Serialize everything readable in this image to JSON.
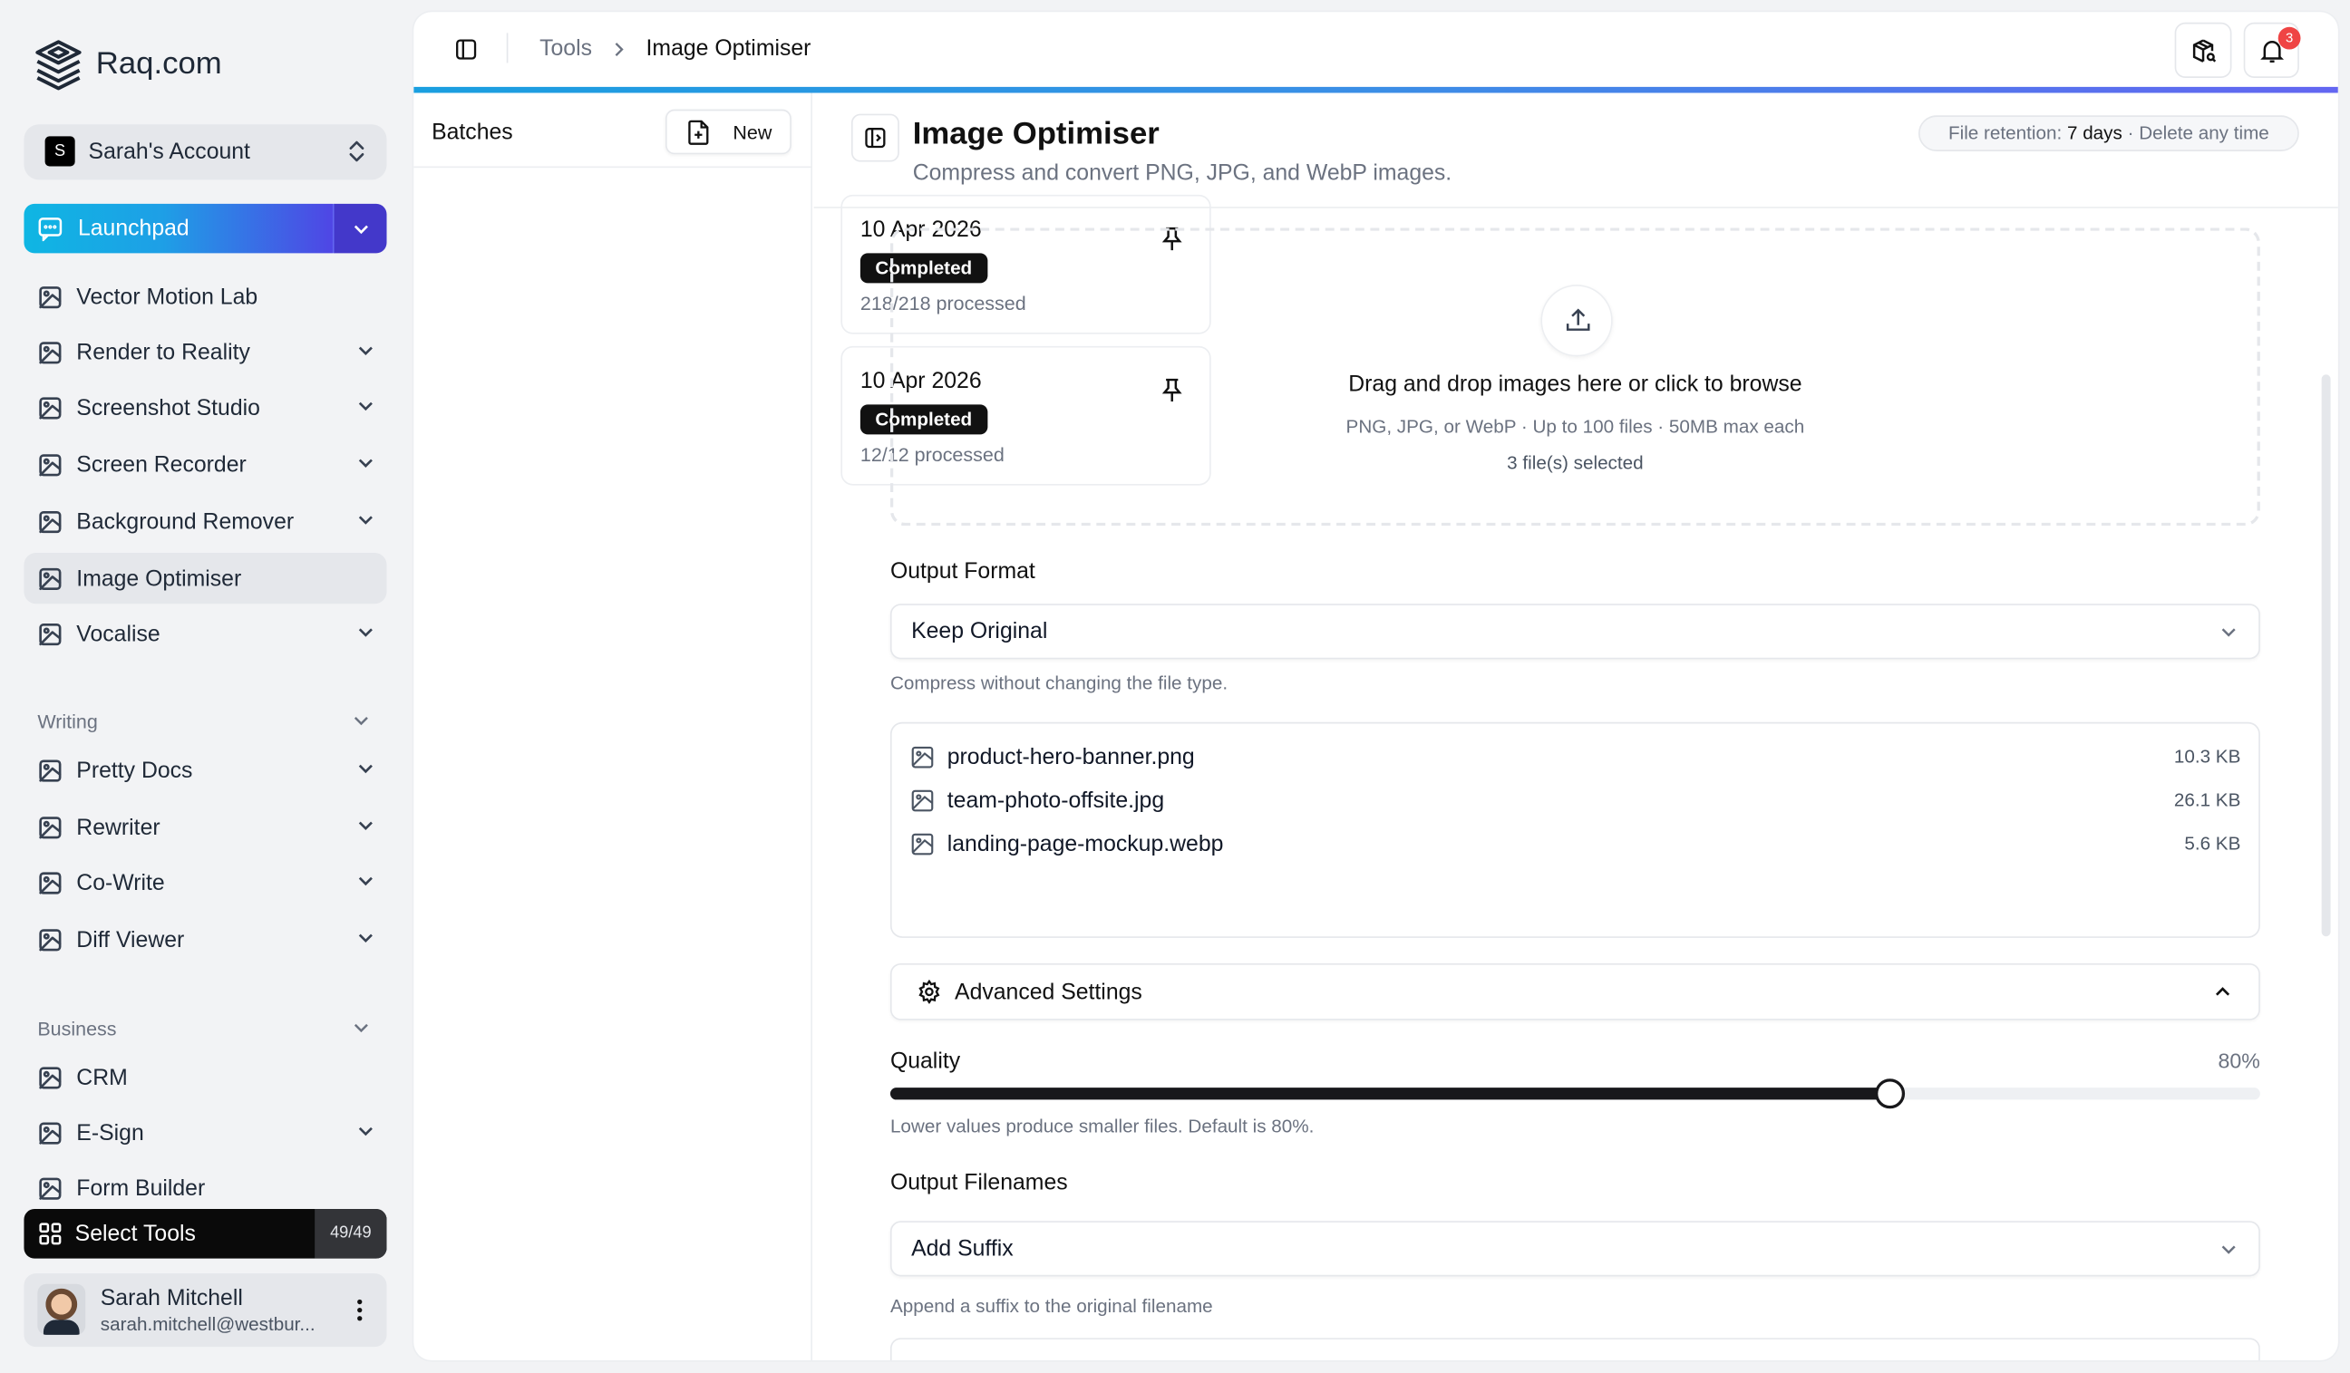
{
  "brand": {
    "name": "Raq.com"
  },
  "account": {
    "initial": "S",
    "name": "Sarah's Account"
  },
  "launchpad": {
    "label": "Launchpad"
  },
  "nav": {
    "tools": [
      {
        "label": "Vector Motion Lab",
        "icon": "vector-motion-icon",
        "chevron": false
      },
      {
        "label": "Render to Reality",
        "icon": "render-icon",
        "chevron": true
      },
      {
        "label": "Screenshot Studio",
        "icon": "crop-icon",
        "chevron": true
      },
      {
        "label": "Screen Recorder",
        "icon": "monitor-icon",
        "chevron": true
      },
      {
        "label": "Background Remover",
        "icon": "image-off-icon",
        "chevron": true
      },
      {
        "label": "Image Optimiser",
        "icon": "image-icon",
        "chevron": false,
        "active": true
      },
      {
        "label": "Vocalise",
        "icon": "voice-icon",
        "chevron": true
      }
    ],
    "writing_label": "Writing",
    "writing": [
      {
        "label": "Pretty Docs",
        "icon": "scroll-icon"
      },
      {
        "label": "Rewriter",
        "icon": "list-check-icon"
      },
      {
        "label": "Co-Write",
        "icon": "pen-icon"
      },
      {
        "label": "Diff Viewer",
        "icon": "git-compare-icon"
      }
    ],
    "business_label": "Business",
    "business": [
      {
        "label": "CRM",
        "icon": "contact-icon",
        "chevron": false
      },
      {
        "label": "E-Sign",
        "icon": "signature-icon",
        "chevron": true
      },
      {
        "label": "Form Builder",
        "icon": "clipboard-icon",
        "chevron": false
      }
    ]
  },
  "select_tools": {
    "label": "Select Tools",
    "count": "49/49"
  },
  "user": {
    "name": "Sarah Mitchell",
    "email": "sarah.mitchell@westbur..."
  },
  "header": {
    "breadcrumb": [
      "Tools",
      "Image Optimiser"
    ],
    "notifications": "3"
  },
  "batches": {
    "title": "Batches",
    "new_label": "New",
    "items": [
      {
        "date": "10 Apr 2026",
        "status": "Completed",
        "processed": "218/218 processed"
      },
      {
        "date": "10 Apr 2026",
        "status": "Completed",
        "processed": "12/12 processed"
      }
    ]
  },
  "page": {
    "title": "Image Optimiser",
    "subtitle": "Compress and convert PNG, JPG, and WebP images.",
    "retention_prefix": "File retention: ",
    "retention_value": "7 days",
    "retention_suffix": " · Delete any time"
  },
  "dropzone": {
    "title": "Drag and drop images here or click to browse",
    "hint": "PNG, JPG, or WebP · Up to 100 files · 50MB max each",
    "selected": "3 file(s) selected"
  },
  "output_format": {
    "label": "Output Format",
    "value": "Keep Original",
    "help": "Compress without changing the file type."
  },
  "files": [
    {
      "name": "product-hero-banner.png",
      "size": "10.3 KB"
    },
    {
      "name": "team-photo-offsite.jpg",
      "size": "26.1 KB"
    },
    {
      "name": "landing-page-mockup.webp",
      "size": "5.6 KB"
    }
  ],
  "advanced": {
    "label": "Advanced Settings"
  },
  "quality": {
    "label": "Quality",
    "value": 80,
    "display": "80%",
    "help": "Lower values produce smaller files. Default is 80%."
  },
  "output_filenames": {
    "label": "Output Filenames",
    "value": "Add Suffix",
    "help": "Append a suffix to the original filename"
  },
  "colors": {
    "accent_start": "#0fb6e3",
    "accent_end": "#4f46e5",
    "badge": "#ef4444"
  }
}
